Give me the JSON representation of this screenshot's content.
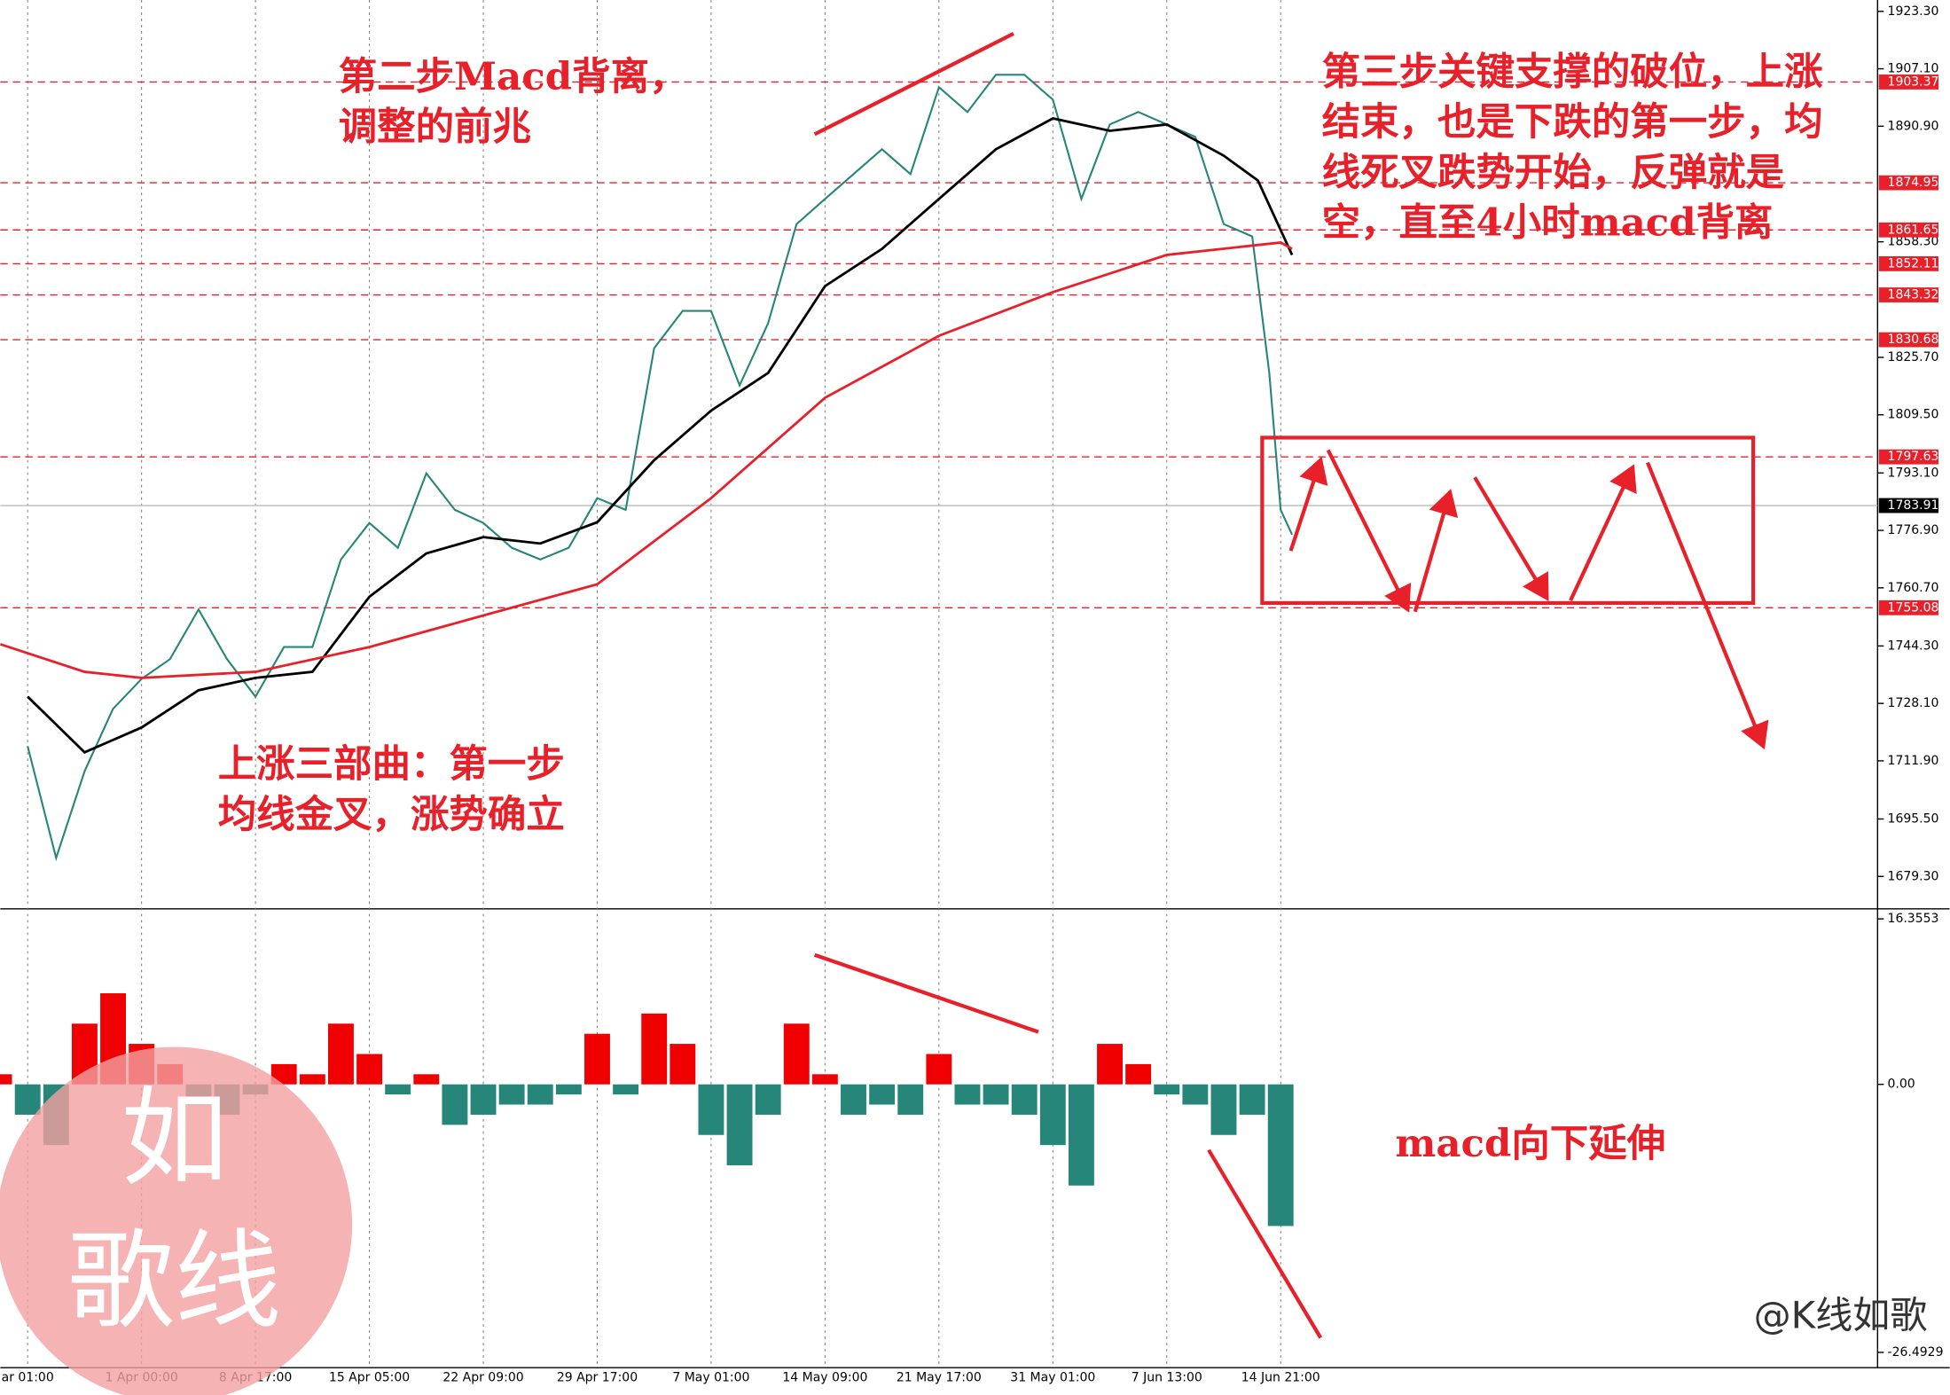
{
  "chart_data": [
    {
      "type": "line",
      "xlim": [
        -0.24,
        16.24
      ],
      "xticks": [
        {
          "value": 0,
          "label": "ar 01:00"
        },
        {
          "value": 1,
          "label": "1 Apr 00:00"
        },
        {
          "value": 2,
          "label": "8 Apr 17:00"
        },
        {
          "value": 3,
          "label": "15 Apr 05:00"
        },
        {
          "value": 4,
          "label": "22 Apr 09:00"
        },
        {
          "value": 5,
          "label": "29 Apr 17:00"
        },
        {
          "value": 6,
          "label": "7 May 01:00"
        },
        {
          "value": 7,
          "label": "14 May 09:00"
        },
        {
          "value": 8,
          "label": "21 May 17:00"
        },
        {
          "value": 9,
          "label": "31 May 01:00"
        },
        {
          "value": 10,
          "label": "7 Jun 13:00"
        },
        {
          "value": 11,
          "label": "14 Jun 21:00"
        }
      ],
      "ylim": [
        1670.5,
        1926.5
      ],
      "yticks": [
        {
          "value": 1923.3,
          "label": "1923.30"
        },
        {
          "value": 1907.1,
          "label": "1907.10"
        },
        {
          "value": 1890.9,
          "label": "1890.90"
        },
        {
          "value": 1858.3,
          "label": "1858.30"
        },
        {
          "value": 1825.7,
          "label": "1825.70"
        },
        {
          "value": 1809.5,
          "label": "1809.50"
        },
        {
          "value": 1793.1,
          "label": "1793.10"
        },
        {
          "value": 1776.9,
          "label": "1776.90"
        },
        {
          "value": 1760.7,
          "label": "1760.70"
        },
        {
          "value": 1744.3,
          "label": "1744.30"
        },
        {
          "value": 1728.1,
          "label": "1728.10"
        },
        {
          "value": 1711.9,
          "label": "1711.90"
        },
        {
          "value": 1695.5,
          "label": "1695.50"
        },
        {
          "value": 1679.3,
          "label": "1679.30"
        }
      ],
      "levels": [
        1903.37,
        1874.95,
        1861.65,
        1852.11,
        1843.32,
        1830.68,
        1797.63,
        1755.08
      ],
      "level_color": "#e8202a",
      "current_price": 1783.91,
      "series": [
        {
          "color": "#26867a",
          "x": [
            0,
            0.25,
            0.5,
            0.75,
            1,
            1.25,
            1.5,
            1.75,
            2,
            2.25,
            2.5,
            2.75,
            3,
            3.25,
            3.5,
            3.75,
            4,
            4.25,
            4.5,
            4.75,
            5,
            5.25,
            5.5,
            5.75,
            6,
            6.25,
            6.5,
            6.75,
            7,
            7.25,
            7.5,
            7.75,
            8,
            8.25,
            8.5,
            8.75,
            9,
            9.25,
            9.5,
            9.75,
            10,
            10.25,
            10.5,
            10.75,
            10.9,
            11,
            11.1
          ],
          "values": [
            1716,
            1684.5,
            1709,
            1726.6,
            1735,
            1740.6,
            1754.6,
            1740.6,
            1730,
            1744,
            1744,
            1768.7,
            1779,
            1772,
            1793,
            1782.7,
            1779,
            1772,
            1768.7,
            1772,
            1786,
            1782.7,
            1828.3,
            1838.8,
            1838.8,
            1817.8,
            1835.3,
            1863.3,
            1870.4,
            1877.4,
            1884.4,
            1877.4,
            1901.9,
            1894.9,
            1905.4,
            1905.4,
            1898.4,
            1870.4,
            1891.4,
            1894.9,
            1891.4,
            1887.9,
            1863.3,
            1859.8,
            1821.3,
            1782.7,
            1775.7
          ]
        },
        {
          "color": "#000000",
          "x": [
            0,
            0.5,
            1,
            1.5,
            2,
            2.5,
            3,
            3.5,
            4,
            4.5,
            5,
            5.5,
            6,
            6.5,
            7,
            7.5,
            8,
            8.5,
            9,
            9.5,
            10,
            10.5,
            10.8,
            11.1
          ],
          "values": [
            1730,
            1714.3,
            1721.3,
            1731.8,
            1735.3,
            1737,
            1758.2,
            1770.4,
            1775,
            1773.2,
            1779.2,
            1796.7,
            1810.7,
            1821.3,
            1845.8,
            1856.3,
            1870.4,
            1884.4,
            1893.1,
            1889.6,
            1891.4,
            1882.6,
            1875.6,
            1854.6
          ]
        },
        {
          "color": "#e8202a",
          "x": [
            -0.24,
            0.5,
            1,
            2,
            3,
            4,
            5,
            6,
            7,
            8,
            9,
            10,
            11,
            11.1
          ],
          "values": [
            1744.8,
            1737,
            1735.3,
            1737,
            1744,
            1752.9,
            1761.7,
            1786,
            1814.3,
            1831.8,
            1844.1,
            1854.6,
            1858.1,
            1856.3
          ]
        }
      ],
      "annotations": [
        {
          "lines": [
            "第二步Macd背离，",
            "调整的前兆"
          ]
        },
        {
          "lines": [
            "上涨三部曲：第一步",
            "均线金叉，涨势确立"
          ]
        },
        {
          "lines": [
            "第三步关键支撑的破位，上涨",
            "结束，也是下跌的第一步，均",
            "线死叉跌势开始，反弹就是",
            "空，直至4小时macd背离"
          ]
        }
      ],
      "watermark": [
        "如",
        "歌线"
      ],
      "credit": "@K线如歌"
    },
    {
      "type": "bar",
      "ylim": [
        -28,
        17.1
      ],
      "yticks": [
        16.3553,
        {
          "value": 0,
          "label": "0.00"
        },
        -26.4929
      ],
      "color_positive": "#f00000",
      "color_negative": "#26867a",
      "x": [
        -0.25,
        0,
        0.25,
        0.5,
        0.75,
        1,
        1.25,
        1.5,
        1.75,
        2,
        2.25,
        2.5,
        2.75,
        3,
        3.25,
        3.5,
        3.75,
        4,
        4.25,
        4.5,
        4.75,
        5,
        5.25,
        5.5,
        5.75,
        6,
        6.25,
        6.5,
        6.75,
        7,
        7.25,
        7.5,
        7.75,
        8,
        8.25,
        8.5,
        8.75,
        9,
        9.25,
        9.5,
        9.75,
        10,
        10.25,
        10.5,
        10.75,
        11
      ],
      "values": [
        1,
        -3,
        -6,
        6,
        9,
        4,
        2,
        -2,
        -3,
        -1,
        2,
        1,
        6,
        3,
        -1,
        1,
        -4,
        -3,
        -2,
        -2,
        -1,
        5,
        -1,
        7,
        4,
        -5,
        -8,
        -3,
        6,
        1,
        -3,
        -2,
        -3,
        3,
        -2,
        -2,
        -3,
        -6,
        -10,
        4,
        2,
        -1,
        -2,
        -5,
        -3,
        -14
      ],
      "annotation": "macd向下延伸"
    }
  ]
}
